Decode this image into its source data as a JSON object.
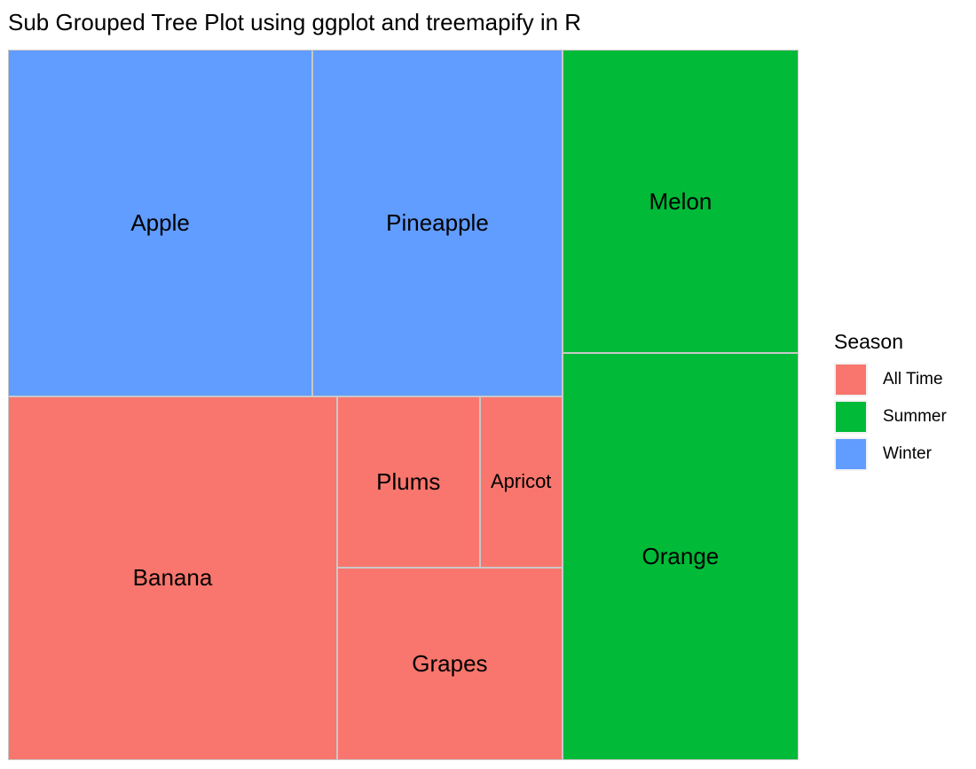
{
  "chart_data": {
    "type": "treemap",
    "title": "Sub Grouped Tree Plot using ggplot and treemapify in R",
    "legend": {
      "title": "Season",
      "position": "right",
      "entries": [
        {
          "label": "All Time",
          "color": "#F8766D"
        },
        {
          "label": "Summer",
          "color": "#00BA38"
        },
        {
          "label": "Winter",
          "color": "#619CFF"
        }
      ]
    },
    "groups": [
      {
        "name": "Winter",
        "items": [
          {
            "label": "Apple",
            "value": 134
          },
          {
            "label": "Pineapple",
            "value": 110
          }
        ]
      },
      {
        "name": "All Time",
        "items": [
          {
            "label": "Banana",
            "value": 152
          },
          {
            "label": "Plums",
            "value": 31
          },
          {
            "label": "Apricot",
            "value": 18
          },
          {
            "label": "Grapes",
            "value": 55
          }
        ]
      },
      {
        "name": "Summer",
        "items": [
          {
            "label": "Melon",
            "value": 91
          },
          {
            "label": "Orange",
            "value": 122
          }
        ]
      }
    ],
    "note": "values are estimated relative areas"
  }
}
